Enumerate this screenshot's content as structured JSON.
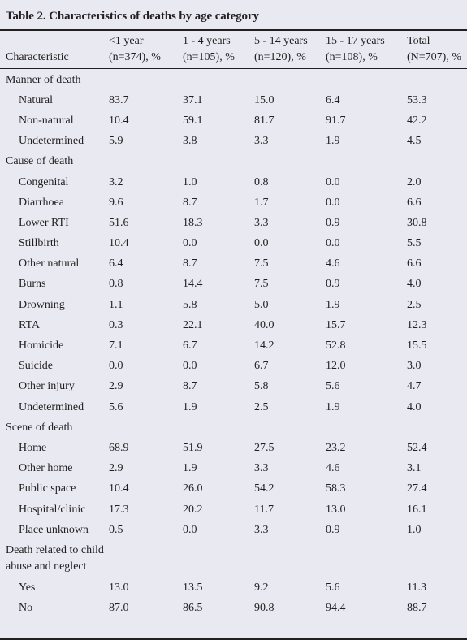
{
  "title": "Table 2. Characteristics of deaths by age category",
  "header": {
    "characteristic": "Characteristic",
    "columns": [
      {
        "line1": "<1 year",
        "line2": "(n=374), %"
      },
      {
        "line1": "1 - 4 years",
        "line2": "(n=105), %"
      },
      {
        "line1": "5 - 14 years",
        "line2": "(n=120), %"
      },
      {
        "line1": "15 - 17 years",
        "line2": "(n=108), %"
      },
      {
        "line1": "Total",
        "line2": "(N=707), %"
      }
    ]
  },
  "sections": [
    {
      "label": "Manner of death",
      "rows": [
        {
          "label": "Natural",
          "values": [
            "83.7",
            "37.1",
            "15.0",
            "6.4",
            "53.3"
          ]
        },
        {
          "label": "Non-natural",
          "values": [
            "10.4",
            "59.1",
            "81.7",
            "91.7",
            "42.2"
          ]
        },
        {
          "label": "Undetermined",
          "values": [
            "5.9",
            "3.8",
            "3.3",
            "1.9",
            "4.5"
          ]
        }
      ]
    },
    {
      "label": "Cause of death",
      "rows": [
        {
          "label": "Congenital",
          "values": [
            "3.2",
            "1.0",
            "0.8",
            "0.0",
            "2.0"
          ]
        },
        {
          "label": "Diarrhoea",
          "values": [
            "9.6",
            "8.7",
            "1.7",
            "0.0",
            "6.6"
          ]
        },
        {
          "label": "Lower RTI",
          "values": [
            "51.6",
            "18.3",
            "3.3",
            "0.9",
            "30.8"
          ]
        },
        {
          "label": "Stillbirth",
          "values": [
            "10.4",
            "0.0",
            "0.0",
            "0.0",
            "5.5"
          ]
        },
        {
          "label": "Other natural",
          "values": [
            "6.4",
            "8.7",
            "7.5",
            "4.6",
            "6.6"
          ]
        },
        {
          "label": "Burns",
          "values": [
            "0.8",
            "14.4",
            "7.5",
            "0.9",
            "4.0"
          ]
        },
        {
          "label": "Drowning",
          "values": [
            "1.1",
            "5.8",
            "5.0",
            "1.9",
            "2.5"
          ]
        },
        {
          "label": "RTA",
          "values": [
            "0.3",
            "22.1",
            "40.0",
            "15.7",
            "12.3"
          ]
        },
        {
          "label": "Homicide",
          "values": [
            "7.1",
            "6.7",
            "14.2",
            "52.8",
            "15.5"
          ]
        },
        {
          "label": "Suicide",
          "values": [
            "0.0",
            "0.0",
            "6.7",
            "12.0",
            "3.0"
          ]
        },
        {
          "label": "Other injury",
          "values": [
            "2.9",
            "8.7",
            "5.8",
            "5.6",
            "4.7"
          ]
        },
        {
          "label": "Undetermined",
          "values": [
            "5.6",
            "1.9",
            "2.5",
            "1.9",
            "4.0"
          ]
        }
      ]
    },
    {
      "label": "Scene of death",
      "rows": [
        {
          "label": "Home",
          "values": [
            "68.9",
            "51.9",
            "27.5",
            "23.2",
            "52.4"
          ]
        },
        {
          "label": "Other home",
          "values": [
            "2.9",
            "1.9",
            "3.3",
            "4.6",
            "3.1"
          ]
        },
        {
          "label": "Public space",
          "values": [
            "10.4",
            "26.0",
            "54.2",
            "58.3",
            "27.4"
          ]
        },
        {
          "label": "Hospital/clinic",
          "values": [
            "17.3",
            "20.2",
            "11.7",
            "13.0",
            "16.1"
          ]
        },
        {
          "label": "Place unknown",
          "values": [
            "0.5",
            "0.0",
            "3.3",
            "0.9",
            "1.0"
          ]
        }
      ]
    },
    {
      "label": "Death related to child abuse and neglect",
      "wrap": true,
      "rows": [
        {
          "label": "Yes",
          "values": [
            "13.0",
            "13.5",
            "9.2",
            "5.6",
            "11.3"
          ]
        },
        {
          "label": "No",
          "values": [
            "87.0",
            "86.5",
            "90.8",
            "94.4",
            "88.7"
          ]
        }
      ]
    }
  ]
}
